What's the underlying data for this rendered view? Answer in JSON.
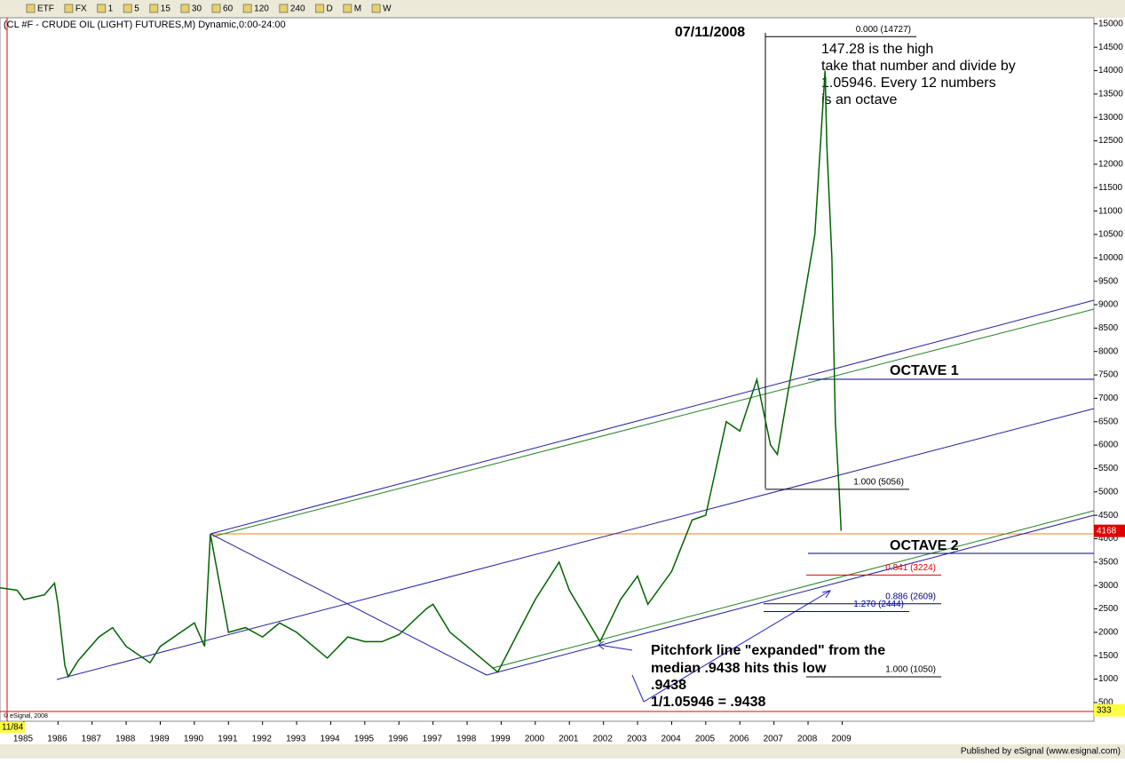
{
  "toolbar": {
    "items": [
      "ETF",
      "FX",
      "1",
      "5",
      "15",
      "30",
      "60",
      "120",
      "240",
      "D",
      "M",
      "W"
    ]
  },
  "chart_data": {
    "type": "line",
    "title": "(CL #F - CRUDE OIL (LIGHT) FUTURES,M) Dynamic,0:00-24:00",
    "color": "#006400",
    "x": [
      1984.3,
      1984.8,
      1985.0,
      1985.6,
      1985.9,
      1986.0,
      1986.2,
      1986.3,
      1986.6,
      1987.2,
      1987.6,
      1988.0,
      1988.7,
      1989.0,
      1989.6,
      1990.0,
      1990.3,
      1990.47,
      1990.7,
      1991.0,
      1991.5,
      1992.0,
      1992.5,
      1993.0,
      1993.9,
      1994.5,
      1995.0,
      1995.5,
      1996.0,
      1996.8,
      1997.0,
      1997.5,
      1998.0,
      1998.9,
      1999.5,
      2000.0,
      2000.7,
      2001.0,
      2001.9,
      2002.5,
      2003.0,
      2003.3,
      2004.0,
      2004.6,
      2005.0,
      2005.6,
      2006.0,
      2006.5,
      2006.9,
      2007.1,
      2007.5,
      2007.9,
      2008.2,
      2008.5,
      2008.55,
      2008.7,
      2008.8,
      2008.92,
      2008.97
    ],
    "values": [
      2950,
      2900,
      2700,
      2800,
      3050,
      2600,
      1300,
      1050,
      1400,
      1900,
      2100,
      1700,
      1350,
      1700,
      2000,
      2200,
      1700,
      4100,
      3200,
      2000,
      2100,
      1900,
      2200,
      2000,
      1450,
      1900,
      1800,
      1800,
      1950,
      2500,
      2600,
      2000,
      1700,
      1150,
      2000,
      2700,
      3500,
      2900,
      1800,
      2700,
      3200,
      2600,
      3300,
      4400,
      4500,
      6500,
      6300,
      7400,
      6000,
      5800,
      7500,
      9200,
      10500,
      14000,
      12400,
      10000,
      6500,
      4900,
      4168
    ],
    "xlim": [
      1984.3,
      2016.385
    ],
    "ylim": [
      100,
      15130
    ],
    "xticks": [
      1985,
      1986,
      1987,
      1988,
      1989,
      1990,
      1991,
      1992,
      1993,
      1994,
      1995,
      1996,
      1997,
      1998,
      1999,
      2000,
      2001,
      2002,
      2003,
      2004,
      2005,
      2006,
      2007,
      2008,
      2009
    ],
    "yticks": [
      500,
      1000,
      1500,
      2000,
      2500,
      3000,
      3500,
      4000,
      4500,
      5000,
      5500,
      6000,
      6500,
      7000,
      7500,
      8000,
      8500,
      9000,
      9500,
      10000,
      10500,
      11000,
      11500,
      12000,
      12500,
      13000,
      13500,
      14000,
      14500,
      15000
    ],
    "last_price": 4168,
    "low_price": 333,
    "start_date": "11/84",
    "levels": [
      {
        "label": "0.000 (14727)",
        "value": 14727,
        "color": "#000000"
      },
      {
        "label": "1.000 (5056)",
        "value": 5056,
        "color": "#000000"
      },
      {
        "label": "0.841 (3224)",
        "value": 3224,
        "color": "#e00000"
      },
      {
        "label": "0.886 (2609)",
        "value": 2609,
        "color": "#000080"
      },
      {
        "label": "1.270 (2444)",
        "value": 2444,
        "color": "#0000c0"
      },
      {
        "label": "1.000 (1050)",
        "value": 1050,
        "color": "#000000"
      }
    ],
    "annotations": {
      "date": "07/11/2008",
      "note": [
        "147.28 is the high",
        "take that number and divide by",
        "1.05946.  Every 12 numbers",
        "is an octave"
      ],
      "octave1": "OCTAVE 1",
      "octave2": "OCTAVE 2",
      "pitchfork": [
        "Pitchfork line \"expanded\" from the",
        "median .9438 hits this low",
        ".9438",
        "1/1.05946 = .9438"
      ]
    }
  },
  "copyright": "© eSignal, 2008",
  "footer": "Published by eSignal (www.esignal.com)"
}
